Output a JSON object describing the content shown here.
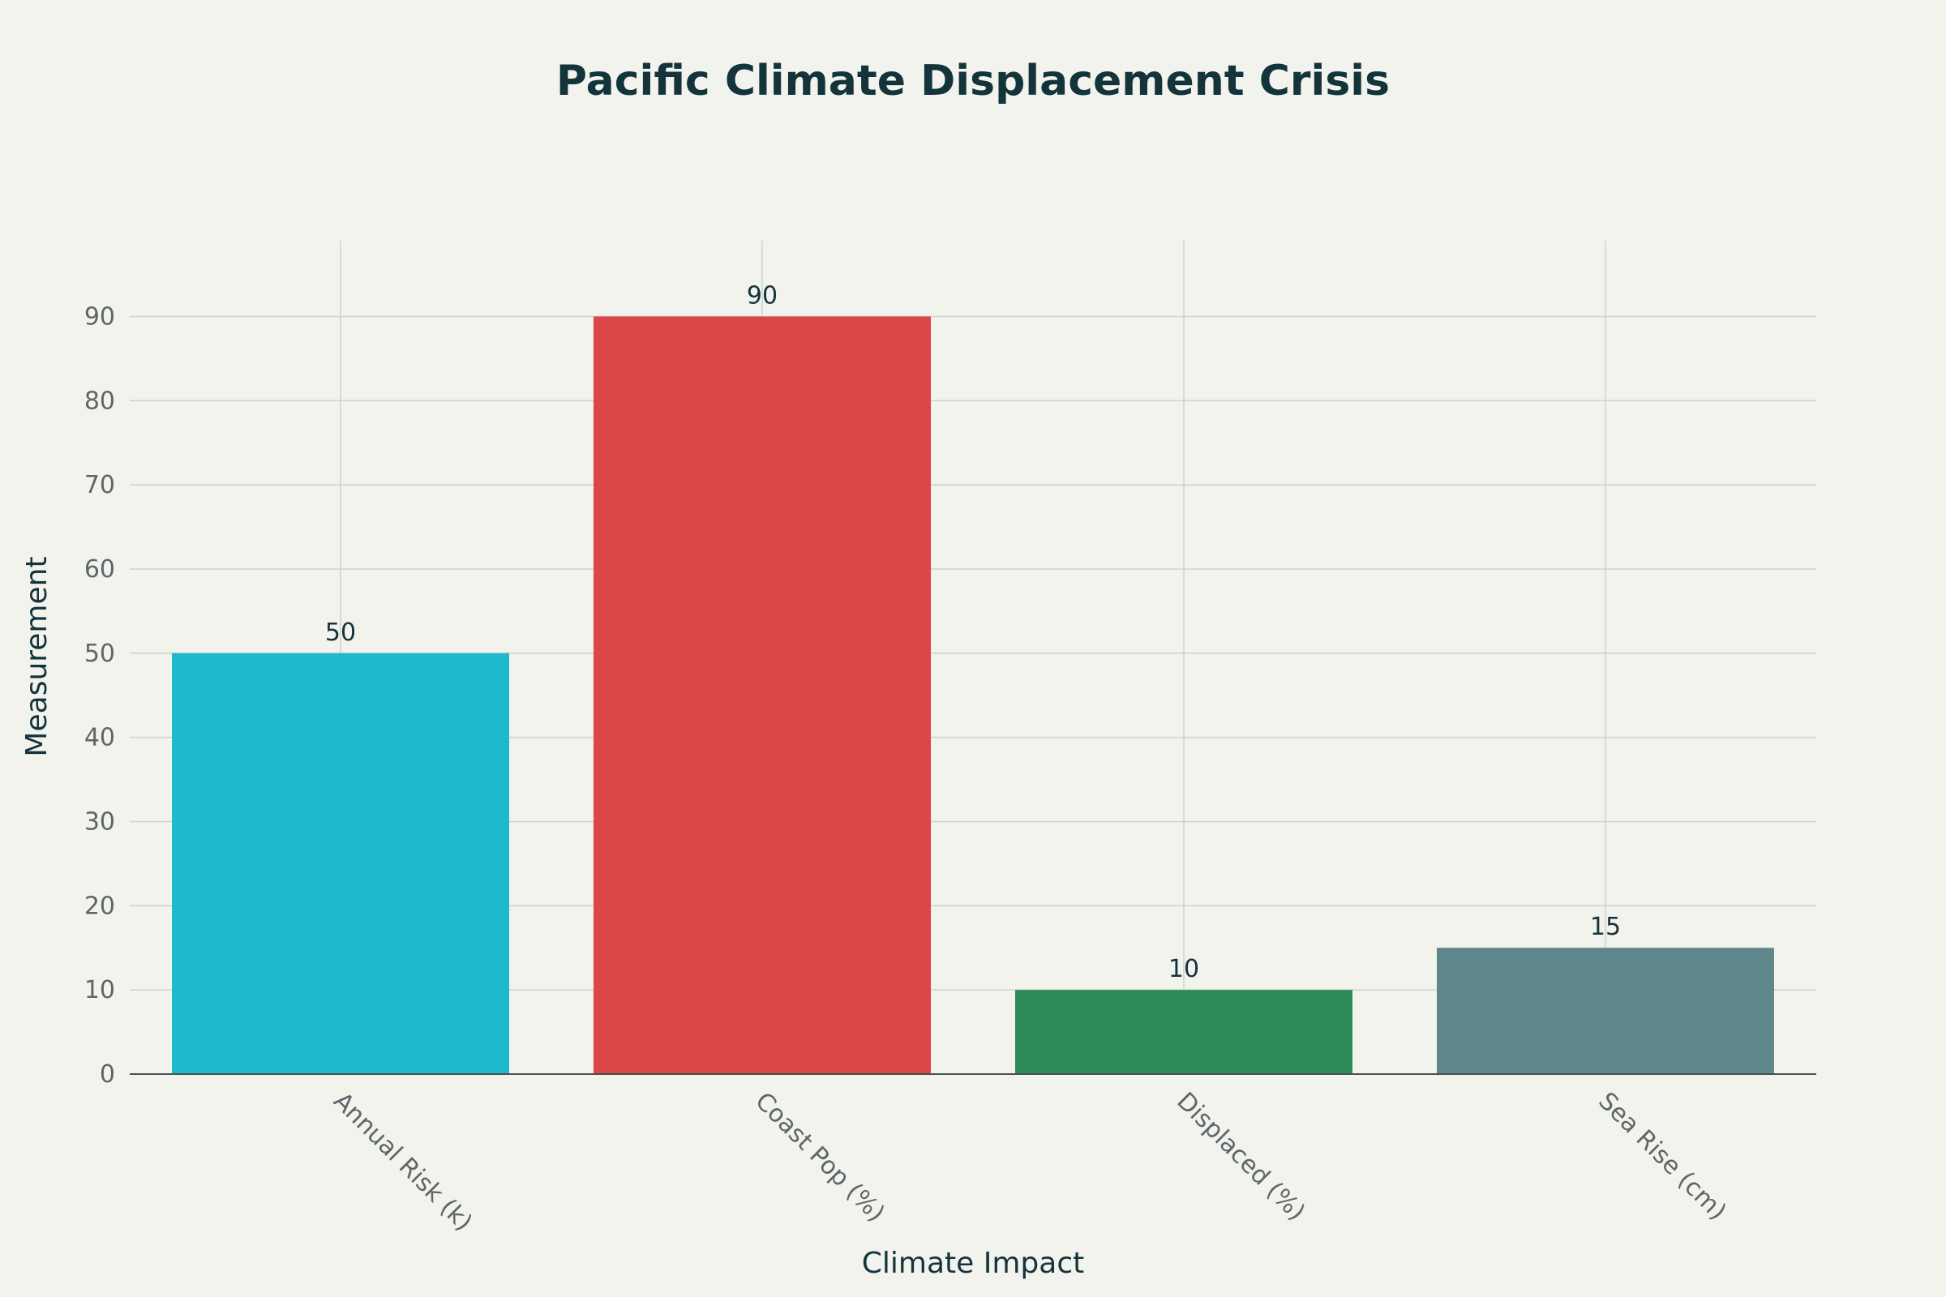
{
  "chart_data": {
    "type": "bar",
    "title": "Pacific Climate Displacement Crisis",
    "xlabel": "Climate Impact",
    "ylabel": "Measurement",
    "categories": [
      "Annual Risk (k)",
      "Coast Pop (%)",
      "Displaced (%)",
      "Sea Rise (cm)"
    ],
    "values": [
      50,
      90,
      10,
      15
    ],
    "colors": [
      "#20b8cc",
      "#db4646",
      "#2e8b57",
      "#5e878c"
    ],
    "ylim": [
      0,
      99
    ],
    "yticks": [
      0,
      10,
      20,
      30,
      40,
      50,
      60,
      70,
      80,
      90
    ],
    "grid": true,
    "legend": "none"
  }
}
